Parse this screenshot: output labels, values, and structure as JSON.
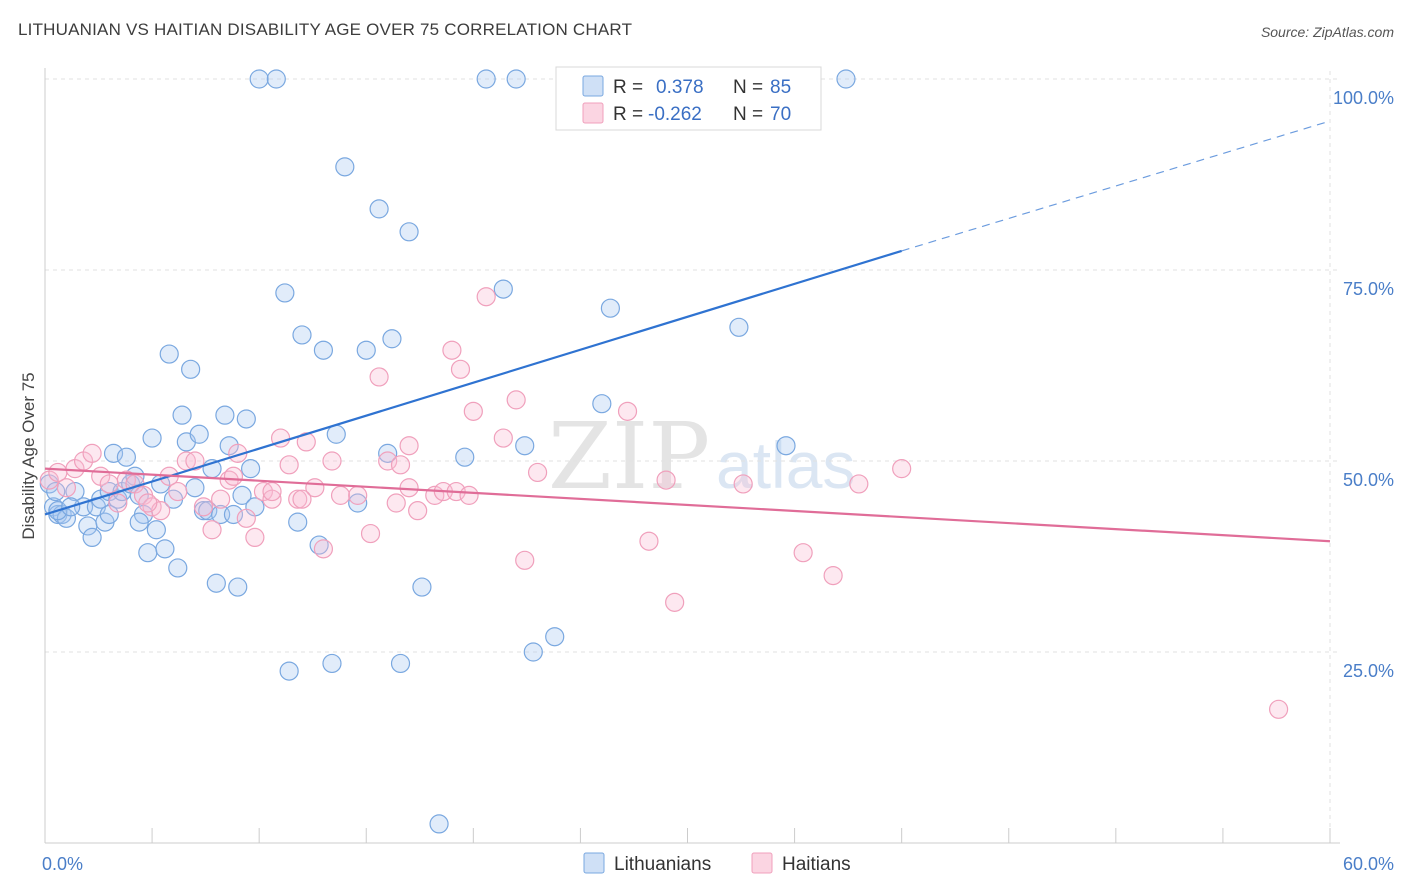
{
  "title": "LITHUANIAN VS HAITIAN DISABILITY AGE OVER 75 CORRELATION CHART",
  "source": "Source: ZipAtlas.com",
  "watermark": {
    "zip": "ZIP",
    "atlas": "atlas"
  },
  "chart_data": {
    "type": "scatter",
    "ylabel": "Disability Age Over 75",
    "xlim": [
      0,
      60
    ],
    "ylim": [
      0,
      100
    ],
    "x_tick_labels": [
      {
        "value": 0,
        "label": "0.0%"
      },
      {
        "value": 60,
        "label": "60.0%"
      }
    ],
    "y_tick_labels": [
      {
        "value": 100,
        "label": "100.0%"
      },
      {
        "value": 75,
        "label": "75.0%"
      },
      {
        "value": 50,
        "label": "50.0%"
      },
      {
        "value": 25,
        "label": "25.0%"
      }
    ],
    "grid": true,
    "legend_placement": "top-center",
    "series": [
      {
        "name": "Lithuanians",
        "color": "#7aa8e0",
        "line_color": "#2f73d1",
        "R": "0.378",
        "N": "85",
        "trend": {
          "x0": 0,
          "y0": 43,
          "x1": 40,
          "y1": 77.5,
          "x_dash_end": 60,
          "y_dash_end": 94.5
        },
        "points": [
          [
            0.2,
            47
          ],
          [
            0.4,
            44
          ],
          [
            0.5,
            46
          ],
          [
            0.6,
            43
          ],
          [
            0.8,
            43
          ],
          [
            1.0,
            42.5
          ],
          [
            1.4,
            46
          ],
          [
            1.8,
            44
          ],
          [
            2.0,
            41.5
          ],
          [
            2.2,
            40
          ],
          [
            2.4,
            44
          ],
          [
            2.6,
            45
          ],
          [
            2.8,
            42
          ],
          [
            3.0,
            46
          ],
          [
            3.2,
            51
          ],
          [
            3.4,
            45
          ],
          [
            3.6,
            46
          ],
          [
            3.8,
            50.5
          ],
          [
            4.0,
            47
          ],
          [
            4.2,
            48
          ],
          [
            4.4,
            45.5
          ],
          [
            4.6,
            43
          ],
          [
            4.8,
            38
          ],
          [
            5.0,
            53
          ],
          [
            5.2,
            41
          ],
          [
            5.4,
            47
          ],
          [
            5.6,
            38.5
          ],
          [
            5.8,
            64
          ],
          [
            6.0,
            45
          ],
          [
            6.2,
            36
          ],
          [
            6.4,
            56
          ],
          [
            6.6,
            52.5
          ],
          [
            6.8,
            62
          ],
          [
            7.0,
            46.5
          ],
          [
            7.2,
            53.5
          ],
          [
            7.4,
            43.5
          ],
          [
            7.6,
            43.5
          ],
          [
            7.8,
            49
          ],
          [
            8.0,
            34
          ],
          [
            8.2,
            43
          ],
          [
            8.4,
            56
          ],
          [
            8.6,
            52
          ],
          [
            8.8,
            43
          ],
          [
            9.0,
            33.5
          ],
          [
            9.2,
            45.5
          ],
          [
            9.4,
            55.5
          ],
          [
            9.6,
            49
          ],
          [
            9.8,
            44
          ],
          [
            10.0,
            100
          ],
          [
            10.8,
            100
          ],
          [
            11.2,
            72
          ],
          [
            11.4,
            22.5
          ],
          [
            11.8,
            42
          ],
          [
            12.0,
            66.5
          ],
          [
            12.8,
            39
          ],
          [
            13.0,
            64.5
          ],
          [
            13.4,
            23.5
          ],
          [
            13.6,
            53.5
          ],
          [
            14.0,
            88.5
          ],
          [
            14.6,
            44.5
          ],
          [
            15.0,
            64.5
          ],
          [
            15.6,
            83
          ],
          [
            16.0,
            51
          ],
          [
            16.2,
            66
          ],
          [
            16.6,
            23.5
          ],
          [
            17.0,
            80
          ],
          [
            17.6,
            33.5
          ],
          [
            18.4,
            2.5
          ],
          [
            19.6,
            50.5
          ],
          [
            20.6,
            100
          ],
          [
            21.4,
            72.5
          ],
          [
            22.0,
            100
          ],
          [
            22.4,
            52
          ],
          [
            22.8,
            25
          ],
          [
            23.8,
            27
          ],
          [
            25.0,
            100
          ],
          [
            26.0,
            57.5
          ],
          [
            26.4,
            70
          ],
          [
            32.4,
            67.5
          ],
          [
            34.6,
            52
          ],
          [
            37.4,
            100
          ],
          [
            0.6,
            43.5
          ],
          [
            1.2,
            44
          ],
          [
            3.0,
            43
          ],
          [
            4.4,
            42
          ]
        ]
      },
      {
        "name": "Haitians",
        "color": "#f0a0bc",
        "line_color": "#e06d98",
        "R": "-0.262",
        "N": "70",
        "trend": {
          "x0": 0,
          "y0": 49,
          "x1": 60,
          "y1": 39.5
        },
        "points": [
          [
            0.2,
            47.5
          ],
          [
            0.6,
            48.5
          ],
          [
            1.0,
            46.5
          ],
          [
            1.4,
            49
          ],
          [
            1.8,
            50
          ],
          [
            2.2,
            51
          ],
          [
            2.6,
            48
          ],
          [
            3.0,
            47
          ],
          [
            3.4,
            44.5
          ],
          [
            3.8,
            47.5
          ],
          [
            4.2,
            47
          ],
          [
            4.6,
            45.5
          ],
          [
            5.0,
            44
          ],
          [
            5.4,
            43.5
          ],
          [
            5.8,
            48
          ],
          [
            6.2,
            46
          ],
          [
            6.6,
            50
          ],
          [
            7.0,
            50
          ],
          [
            7.4,
            44
          ],
          [
            7.8,
            41
          ],
          [
            8.2,
            45
          ],
          [
            8.6,
            47.5
          ],
          [
            9.0,
            51
          ],
          [
            9.4,
            42.5
          ],
          [
            9.8,
            40
          ],
          [
            10.2,
            46
          ],
          [
            10.6,
            45
          ],
          [
            11.0,
            53
          ],
          [
            11.4,
            49.5
          ],
          [
            11.8,
            45
          ],
          [
            12.2,
            52.5
          ],
          [
            12.6,
            46.5
          ],
          [
            13.0,
            38.5
          ],
          [
            13.4,
            50
          ],
          [
            13.8,
            45.5
          ],
          [
            14.6,
            45.5
          ],
          [
            15.2,
            40.5
          ],
          [
            15.6,
            61
          ],
          [
            16.0,
            50
          ],
          [
            16.4,
            44.5
          ],
          [
            17.0,
            52
          ],
          [
            17.4,
            43.5
          ],
          [
            18.2,
            45.5
          ],
          [
            18.6,
            46
          ],
          [
            19.0,
            64.5
          ],
          [
            19.4,
            62
          ],
          [
            20.0,
            56.5
          ],
          [
            20.6,
            71.5
          ],
          [
            21.4,
            53
          ],
          [
            22.0,
            58
          ],
          [
            22.4,
            37
          ],
          [
            23.0,
            48.5
          ],
          [
            27.2,
            56.5
          ],
          [
            28.2,
            39.5
          ],
          [
            29.0,
            47.5
          ],
          [
            29.4,
            31.5
          ],
          [
            32.6,
            47
          ],
          [
            35.4,
            38
          ],
          [
            36.8,
            35
          ],
          [
            38.0,
            47
          ],
          [
            40.0,
            49
          ],
          [
            57.6,
            17.5
          ],
          [
            16.6,
            49.5
          ],
          [
            17.0,
            46.5
          ],
          [
            19.2,
            46
          ],
          [
            19.8,
            45.5
          ],
          [
            12.0,
            45
          ],
          [
            10.6,
            46
          ],
          [
            8.8,
            48
          ],
          [
            4.8,
            44.5
          ]
        ]
      }
    ]
  }
}
